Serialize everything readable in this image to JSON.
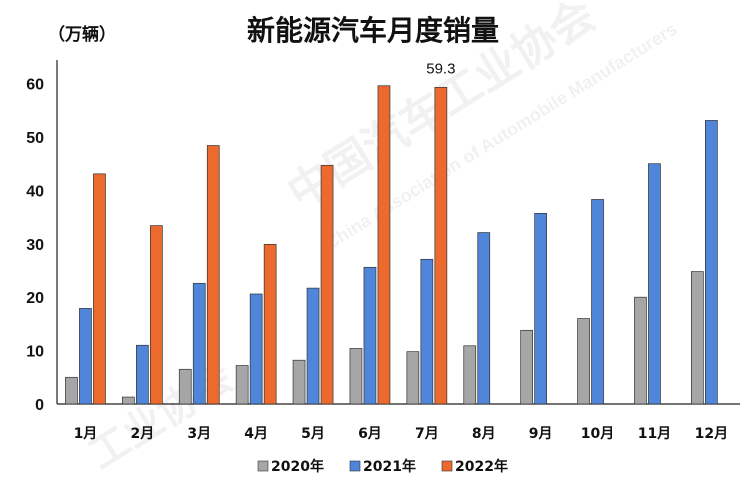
{
  "chart_data": {
    "type": "bar",
    "title": "新能源汽车月度销量",
    "unit_label": "（万辆）",
    "categories": [
      "1月",
      "2月",
      "3月",
      "4月",
      "5月",
      "6月",
      "7月",
      "8月",
      "9月",
      "10月",
      "11月",
      "12月"
    ],
    "series": [
      {
        "name": "2020年",
        "color": "#a6a6a6",
        "values": [
          5.0,
          1.3,
          6.5,
          7.2,
          8.2,
          10.4,
          9.8,
          10.9,
          13.8,
          16.0,
          20.0,
          24.8
        ]
      },
      {
        "name": "2021年",
        "color": "#4f86d9",
        "values": [
          17.9,
          11.0,
          22.6,
          20.6,
          21.7,
          25.6,
          27.1,
          32.1,
          35.7,
          38.3,
          45.0,
          53.1
        ]
      },
      {
        "name": "2022年",
        "color": "#ed6a2e",
        "values": [
          43.1,
          33.4,
          48.4,
          29.9,
          44.7,
          59.6,
          59.3,
          null,
          null,
          null,
          null,
          null
        ]
      }
    ],
    "ylim": [
      0,
      65
    ],
    "yticks": [
      0,
      10,
      20,
      30,
      40,
      50,
      60
    ],
    "annotations": [
      {
        "text": "59.3",
        "category": "7月",
        "series": "2022年"
      }
    ],
    "legend_position": "bottom",
    "grid": false
  }
}
